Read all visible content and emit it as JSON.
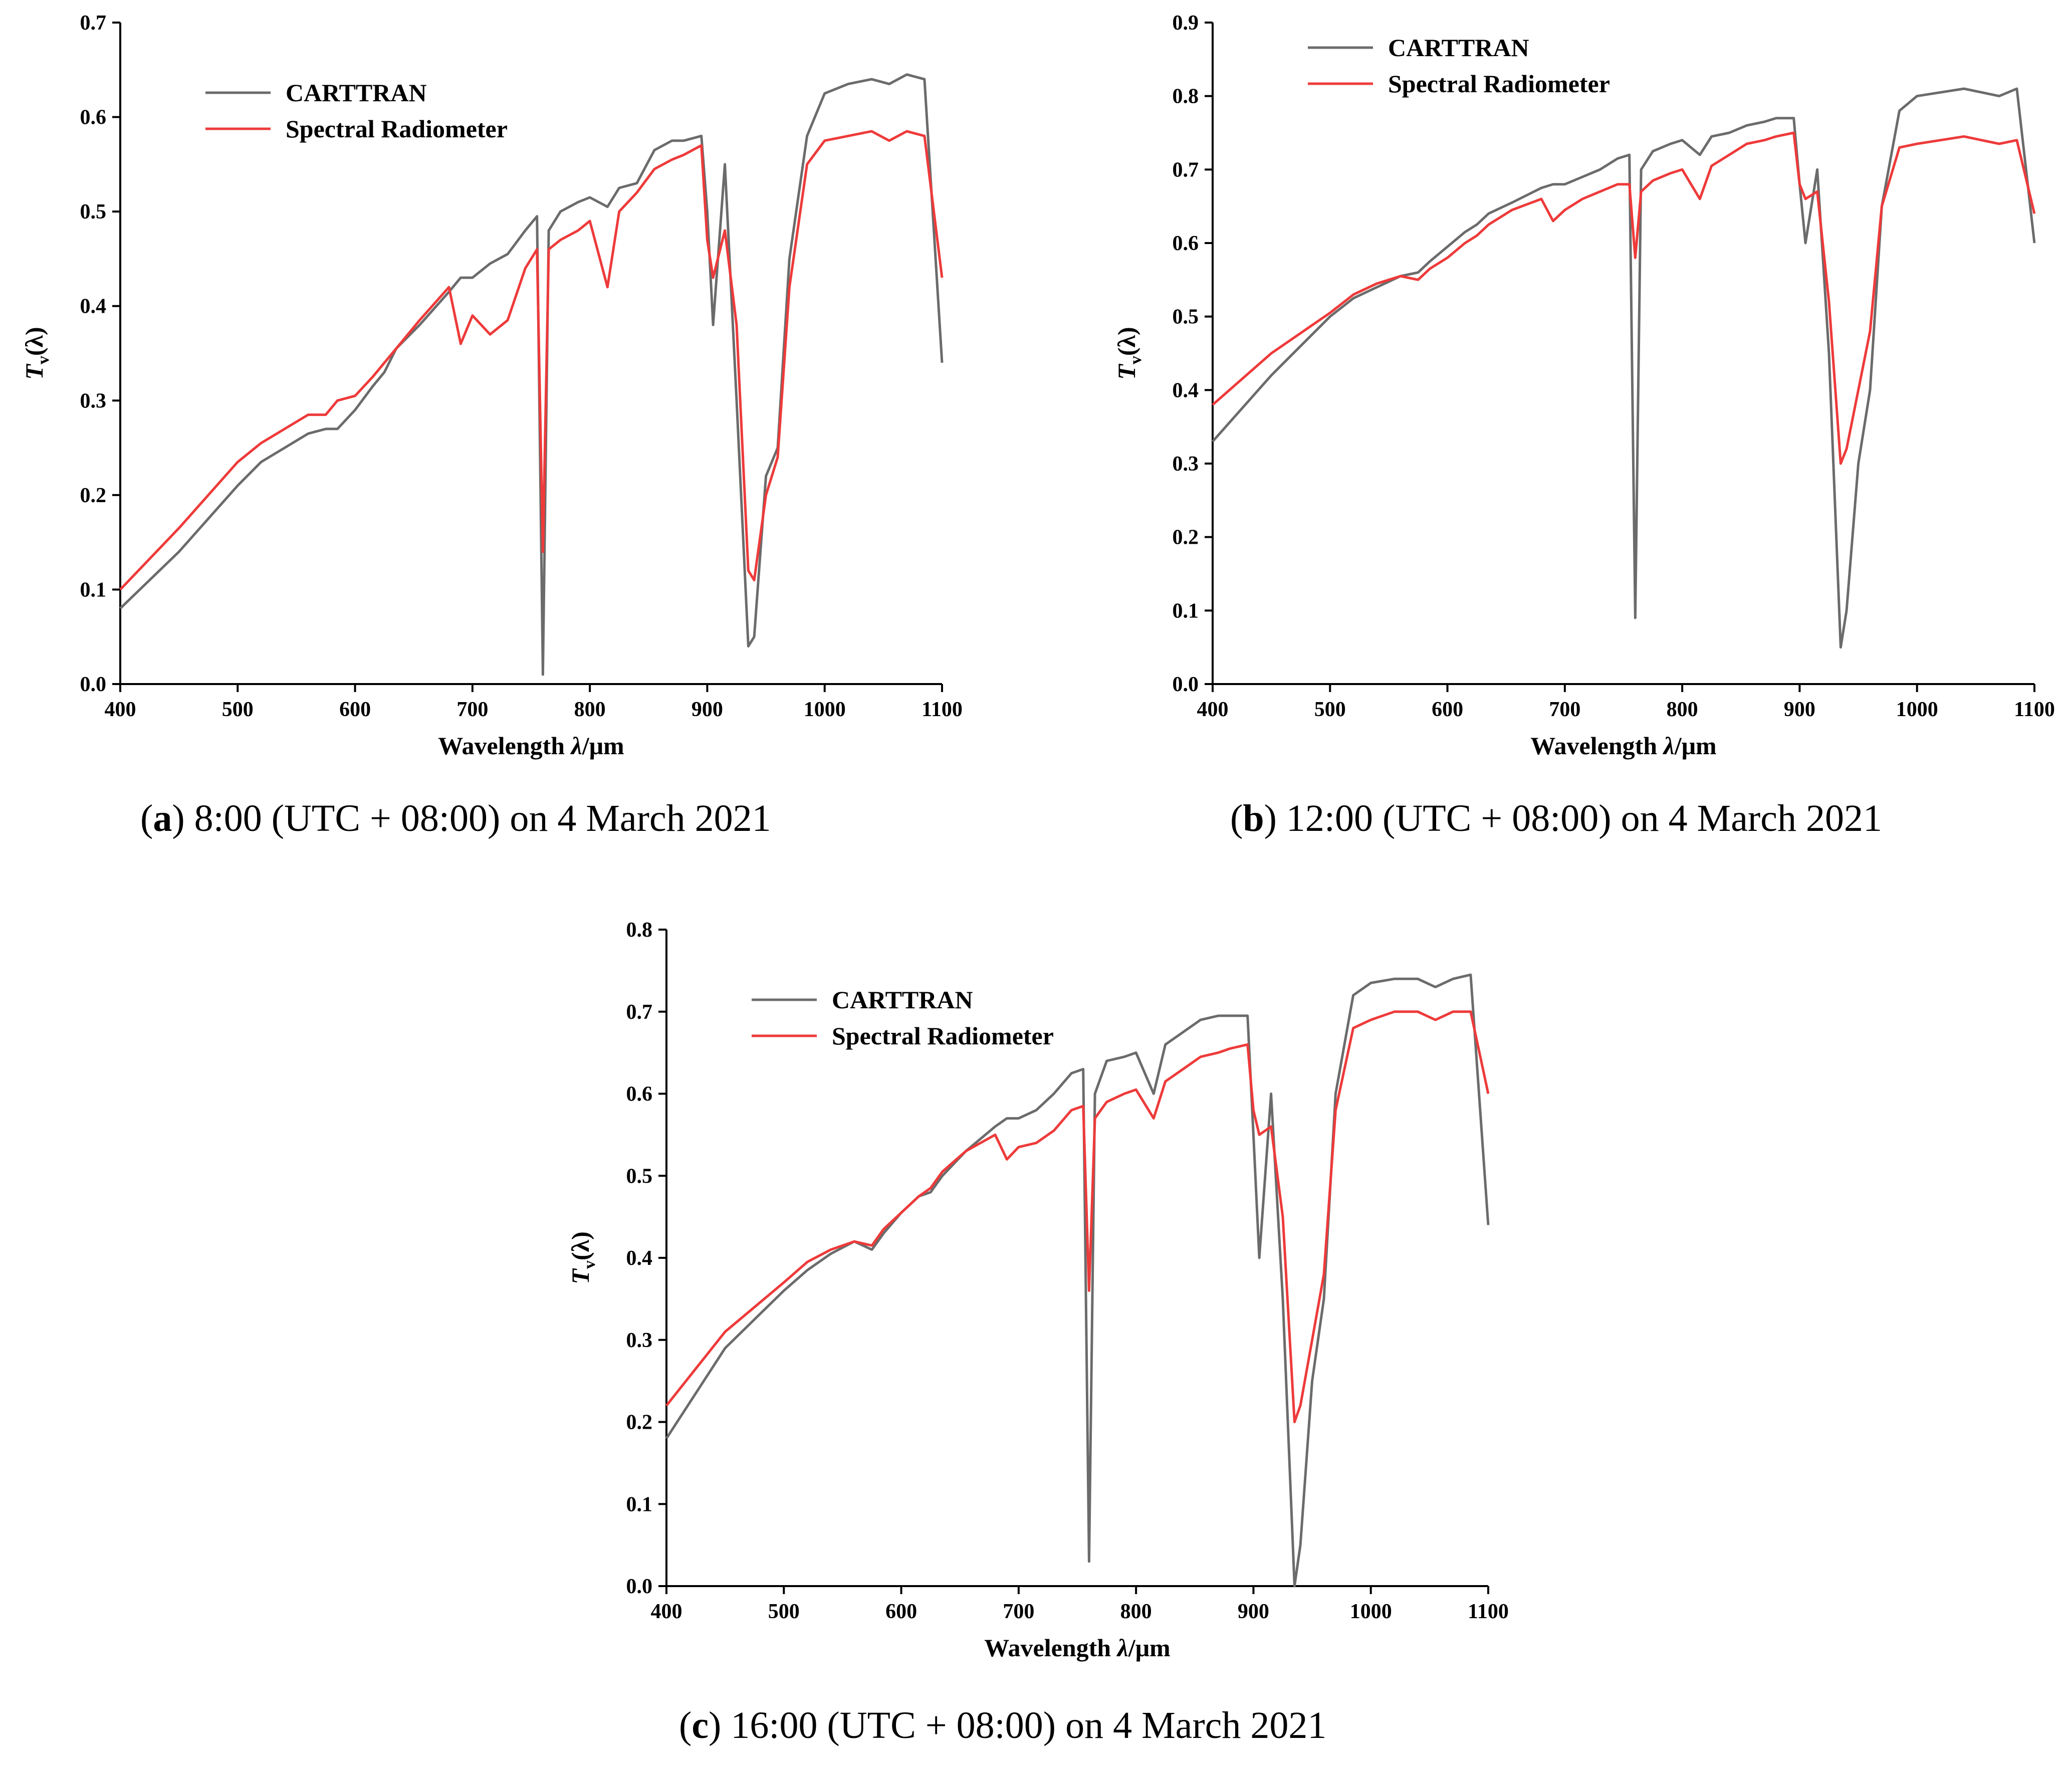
{
  "colors": {
    "carttran": "#6b6b6b",
    "radiometer": "#ee3a3a",
    "axis": "#000000"
  },
  "chart_data": [
    {
      "id": "a",
      "type": "line",
      "caption": {
        "letter": "a",
        "paren_open": "(",
        "paren_close": ")",
        "text": " 8:00 (UTC + 08:00) on 4 March 2021"
      },
      "xlabel": {
        "main": "Wavelength ",
        "symbol": "λ",
        "unit": "/μm"
      },
      "ylabel": {
        "main": "T",
        "sub": "v",
        "arg": "(λ)"
      },
      "xlim": [
        400,
        1100
      ],
      "ylim": [
        0,
        0.7
      ],
      "xticks": [
        "400",
        "500",
        "600",
        "700",
        "800",
        "900",
        "1000",
        "1100"
      ],
      "yticks": [
        "0.0",
        "0.1",
        "0.2",
        "0.3",
        "0.4",
        "0.5",
        "0.6",
        "0.7"
      ],
      "legend": [
        "CARTTRAN",
        "Spectral Radiometer"
      ],
      "series": [
        {
          "name": "CARTTRAN",
          "x": [
            400,
            450,
            500,
            520,
            540,
            560,
            575,
            585,
            600,
            615,
            625,
            635,
            655,
            680,
            690,
            700,
            715,
            730,
            745,
            755,
            760,
            765,
            775,
            790,
            800,
            815,
            825,
            840,
            855,
            870,
            880,
            895,
            900,
            905,
            915,
            925,
            935,
            940,
            950,
            960,
            970,
            985,
            1000,
            1020,
            1040,
            1055,
            1070,
            1085,
            1100
          ],
          "y": [
            0.08,
            0.14,
            0.21,
            0.235,
            0.25,
            0.265,
            0.27,
            0.27,
            0.29,
            0.315,
            0.33,
            0.355,
            0.38,
            0.415,
            0.43,
            0.43,
            0.445,
            0.455,
            0.48,
            0.495,
            0.01,
            0.48,
            0.5,
            0.51,
            0.515,
            0.505,
            0.525,
            0.53,
            0.565,
            0.575,
            0.575,
            0.58,
            0.5,
            0.38,
            0.55,
            0.3,
            0.04,
            0.05,
            0.22,
            0.25,
            0.45,
            0.58,
            0.625,
            0.635,
            0.64,
            0.635,
            0.645,
            0.64,
            0.34
          ]
        },
        {
          "name": "Spectral Radiometer",
          "x": [
            400,
            450,
            500,
            520,
            540,
            560,
            575,
            585,
            600,
            615,
            625,
            635,
            655,
            680,
            690,
            700,
            715,
            730,
            745,
            755,
            760,
            765,
            775,
            790,
            800,
            815,
            825,
            840,
            855,
            870,
            880,
            895,
            900,
            905,
            915,
            925,
            935,
            940,
            950,
            960,
            970,
            985,
            1000,
            1020,
            1040,
            1055,
            1070,
            1085,
            1100
          ],
          "y": [
            0.1,
            0.165,
            0.235,
            0.255,
            0.27,
            0.285,
            0.285,
            0.3,
            0.305,
            0.325,
            0.34,
            0.355,
            0.385,
            0.42,
            0.36,
            0.39,
            0.37,
            0.385,
            0.44,
            0.46,
            0.14,
            0.46,
            0.47,
            0.48,
            0.49,
            0.42,
            0.5,
            0.52,
            0.545,
            0.555,
            0.56,
            0.57,
            0.47,
            0.43,
            0.48,
            0.38,
            0.12,
            0.11,
            0.2,
            0.24,
            0.42,
            0.55,
            0.575,
            0.58,
            0.585,
            0.575,
            0.585,
            0.58,
            0.43
          ]
        }
      ]
    },
    {
      "id": "b",
      "type": "line",
      "caption": {
        "letter": "b",
        "paren_open": "(",
        "paren_close": ")",
        "text": " 12:00 (UTC + 08:00) on 4 March 2021"
      },
      "xlabel": {
        "main": "Wavelength ",
        "symbol": "λ",
        "unit": "/μm"
      },
      "ylabel": {
        "main": "T",
        "sub": "v",
        "arg": "(λ)"
      },
      "xlim": [
        400,
        1100
      ],
      "ylim": [
        0,
        0.9
      ],
      "xticks": [
        "400",
        "500",
        "600",
        "700",
        "800",
        "900",
        "1000",
        "1100"
      ],
      "yticks": [
        "0.0",
        "0.1",
        "0.2",
        "0.3",
        "0.4",
        "0.5",
        "0.6",
        "0.7",
        "0.8",
        "0.9"
      ],
      "legend": [
        "CARTTRAN",
        "Spectral Radiometer"
      ],
      "series": [
        {
          "name": "CARTTRAN",
          "x": [
            400,
            450,
            500,
            520,
            540,
            560,
            575,
            585,
            600,
            615,
            625,
            635,
            655,
            680,
            690,
            700,
            715,
            730,
            745,
            755,
            760,
            765,
            775,
            790,
            800,
            815,
            825,
            840,
            855,
            870,
            880,
            895,
            900,
            905,
            915,
            925,
            935,
            940,
            950,
            960,
            970,
            985,
            1000,
            1020,
            1040,
            1055,
            1070,
            1085,
            1100
          ],
          "y": [
            0.33,
            0.42,
            0.5,
            0.525,
            0.54,
            0.555,
            0.56,
            0.575,
            0.595,
            0.615,
            0.625,
            0.64,
            0.655,
            0.675,
            0.68,
            0.68,
            0.69,
            0.7,
            0.715,
            0.72,
            0.09,
            0.7,
            0.725,
            0.735,
            0.74,
            0.72,
            0.745,
            0.75,
            0.76,
            0.765,
            0.77,
            0.77,
            0.68,
            0.6,
            0.7,
            0.45,
            0.05,
            0.1,
            0.3,
            0.4,
            0.65,
            0.78,
            0.8,
            0.805,
            0.81,
            0.805,
            0.8,
            0.81,
            0.6
          ]
        },
        {
          "name": "Spectral Radiometer",
          "x": [
            400,
            450,
            500,
            520,
            540,
            560,
            575,
            585,
            600,
            615,
            625,
            635,
            655,
            680,
            690,
            700,
            715,
            730,
            745,
            755,
            760,
            765,
            775,
            790,
            800,
            815,
            825,
            840,
            855,
            870,
            880,
            895,
            900,
            905,
            915,
            925,
            935,
            940,
            950,
            960,
            970,
            985,
            1000,
            1020,
            1040,
            1055,
            1070,
            1085,
            1100
          ],
          "y": [
            0.38,
            0.45,
            0.505,
            0.53,
            0.545,
            0.555,
            0.55,
            0.565,
            0.58,
            0.6,
            0.61,
            0.625,
            0.645,
            0.66,
            0.63,
            0.645,
            0.66,
            0.67,
            0.68,
            0.68,
            0.58,
            0.67,
            0.685,
            0.695,
            0.7,
            0.66,
            0.705,
            0.72,
            0.735,
            0.74,
            0.745,
            0.75,
            0.68,
            0.66,
            0.67,
            0.52,
            0.3,
            0.32,
            0.4,
            0.48,
            0.65,
            0.73,
            0.735,
            0.74,
            0.745,
            0.74,
            0.735,
            0.74,
            0.64
          ]
        }
      ]
    },
    {
      "id": "c",
      "type": "line",
      "caption": {
        "letter": "c",
        "paren_open": "(",
        "paren_close": ")",
        "text": " 16:00 (UTC + 08:00) on 4 March 2021"
      },
      "xlabel": {
        "main": "Wavelength ",
        "symbol": "λ",
        "unit": "/μm"
      },
      "ylabel": {
        "main": "T",
        "sub": "v",
        "arg": "(λ)"
      },
      "xlim": [
        400,
        1100
      ],
      "ylim": [
        0,
        0.8
      ],
      "xticks": [
        "400",
        "500",
        "600",
        "700",
        "800",
        "900",
        "1000",
        "1100"
      ],
      "yticks": [
        "0.0",
        "0.1",
        "0.2",
        "0.3",
        "0.4",
        "0.5",
        "0.6",
        "0.7",
        "0.8"
      ],
      "legend": [
        "CARTTRAN",
        "Spectral Radiometer"
      ],
      "series": [
        {
          "name": "CARTTRAN",
          "x": [
            400,
            450,
            500,
            520,
            540,
            560,
            575,
            585,
            600,
            615,
            625,
            635,
            655,
            680,
            690,
            700,
            715,
            730,
            745,
            755,
            760,
            765,
            775,
            790,
            800,
            815,
            825,
            840,
            855,
            870,
            880,
            895,
            900,
            905,
            915,
            925,
            935,
            940,
            950,
            960,
            970,
            985,
            1000,
            1020,
            1040,
            1055,
            1070,
            1085,
            1100
          ],
          "y": [
            0.18,
            0.29,
            0.36,
            0.385,
            0.405,
            0.42,
            0.41,
            0.43,
            0.455,
            0.475,
            0.48,
            0.5,
            0.53,
            0.56,
            0.57,
            0.57,
            0.58,
            0.6,
            0.625,
            0.63,
            0.03,
            0.6,
            0.64,
            0.645,
            0.65,
            0.6,
            0.66,
            0.675,
            0.69,
            0.695,
            0.695,
            0.695,
            0.55,
            0.4,
            0.6,
            0.35,
            0.0,
            0.05,
            0.25,
            0.35,
            0.6,
            0.72,
            0.735,
            0.74,
            0.74,
            0.73,
            0.74,
            0.745,
            0.44
          ]
        },
        {
          "name": "Spectral Radiometer",
          "x": [
            400,
            450,
            500,
            520,
            540,
            560,
            575,
            585,
            600,
            615,
            625,
            635,
            655,
            680,
            690,
            700,
            715,
            730,
            745,
            755,
            760,
            765,
            775,
            790,
            800,
            815,
            825,
            840,
            855,
            870,
            880,
            895,
            900,
            905,
            915,
            925,
            935,
            940,
            950,
            960,
            970,
            985,
            1000,
            1020,
            1040,
            1055,
            1070,
            1085,
            1100
          ],
          "y": [
            0.22,
            0.31,
            0.37,
            0.395,
            0.41,
            0.42,
            0.415,
            0.435,
            0.455,
            0.475,
            0.485,
            0.505,
            0.53,
            0.55,
            0.52,
            0.535,
            0.54,
            0.555,
            0.58,
            0.585,
            0.36,
            0.57,
            0.59,
            0.6,
            0.605,
            0.57,
            0.615,
            0.63,
            0.645,
            0.65,
            0.655,
            0.66,
            0.58,
            0.55,
            0.56,
            0.45,
            0.2,
            0.22,
            0.3,
            0.38,
            0.58,
            0.68,
            0.69,
            0.7,
            0.7,
            0.69,
            0.7,
            0.7,
            0.6
          ]
        }
      ]
    }
  ]
}
